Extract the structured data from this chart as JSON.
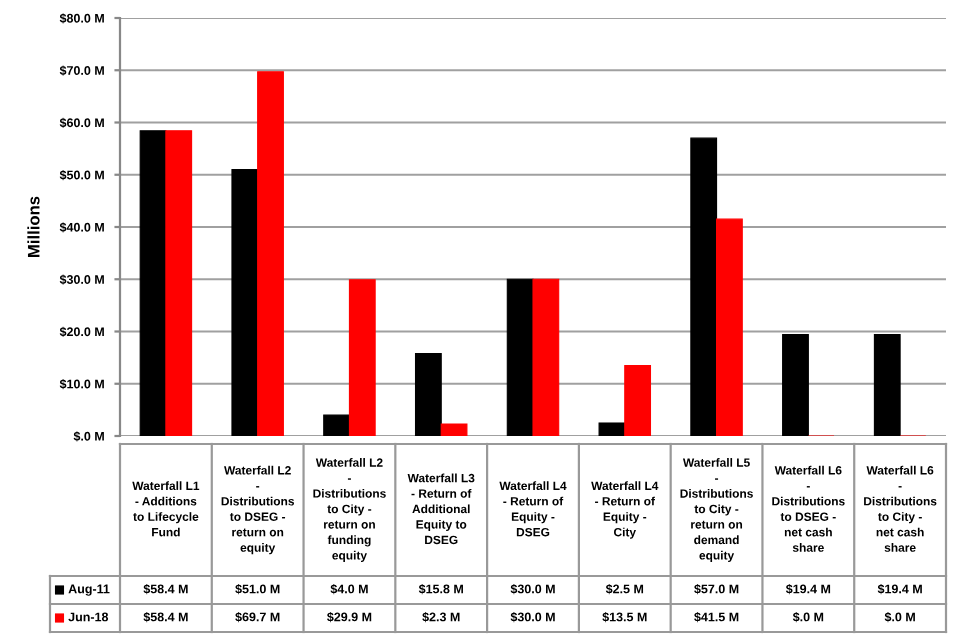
{
  "chart_data": {
    "type": "bar",
    "ylabel": "Millions",
    "categories": [
      "Waterfall L1 - Additions to Lifecycle Fund",
      "Waterfall L2 - Distributions to DSEG - return on equity",
      "Waterfall L2 - Distributions to City - return on funding equity",
      "Waterfall L3 - Return of Additional Equity to DSEG",
      "Waterfall L4 - Return of Equity - DSEG",
      "Waterfall L4 - Return of Equity - City",
      "Waterfall L5 - Distributions to City - return on demand equity",
      "Waterfall L6 - Distributions to DSEG - net cash share",
      "Waterfall L6 - Distributions to City - net cash share"
    ],
    "series": [
      {
        "name": "Aug-11",
        "color": "#000000",
        "values": [
          58.4,
          51.0,
          4.0,
          15.8,
          30.0,
          2.5,
          57.0,
          19.4,
          19.4
        ],
        "value_labels": [
          "$58.4 M",
          "$51.0 M",
          "$4.0 M",
          "$15.8 M",
          "$30.0 M",
          "$2.5 M",
          "$57.0 M",
          "$19.4 M",
          "$19.4 M"
        ]
      },
      {
        "name": "Jun-18",
        "color": "#ff0000",
        "values": [
          58.4,
          69.7,
          29.9,
          2.3,
          30.0,
          13.5,
          41.5,
          0.0,
          0.0
        ],
        "value_labels": [
          "$58.4 M",
          "$69.7 M",
          "$29.9 M",
          "$2.3 M",
          "$30.0 M",
          "$13.5 M",
          "$41.5 M",
          "$.0 M",
          "$.0 M"
        ]
      }
    ],
    "ylim": [
      0,
      80
    ],
    "yticks": [
      {
        "value": 0,
        "label": "$.0 M"
      },
      {
        "value": 10,
        "label": "$10.0 M"
      },
      {
        "value": 20,
        "label": "$20.0 M"
      },
      {
        "value": 30,
        "label": "$30.0 M"
      },
      {
        "value": 40,
        "label": "$40.0 M"
      },
      {
        "value": 50,
        "label": "$50.0 M"
      },
      {
        "value": 60,
        "label": "$60.0 M"
      },
      {
        "value": 70,
        "label": "$70.0 M"
      },
      {
        "value": 80,
        "label": "$80.0 M"
      }
    ],
    "grid": "y",
    "legend": "bottom left"
  }
}
